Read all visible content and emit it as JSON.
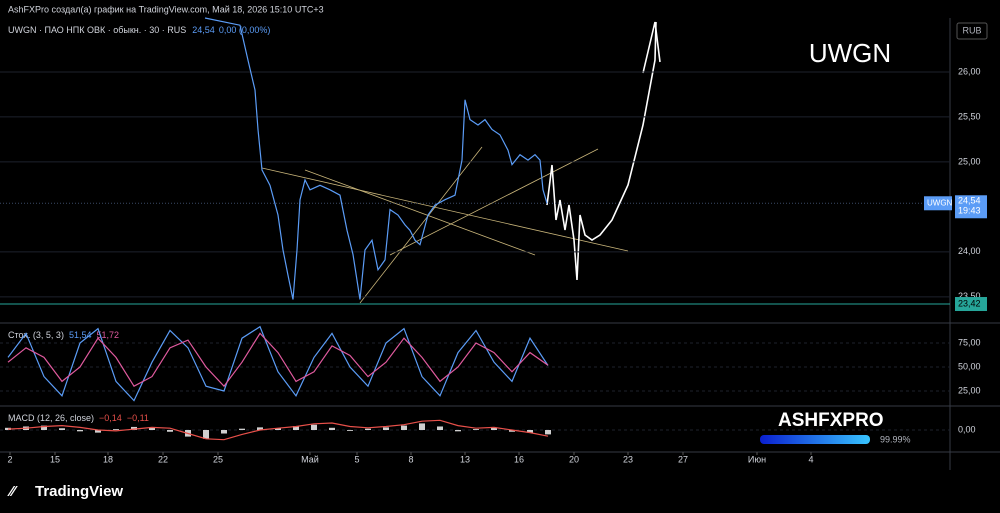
{
  "header": "AshFXPro создал(а) график на TradingView.com, Май 18, 2026 15:10 UTC+3",
  "symbol_big": "UWGN",
  "currency": "RUB",
  "footer": "TradingView",
  "watermark": {
    "title": "ASHFXPRO",
    "percent": "99.99%"
  },
  "chart_data": [
    {
      "type": "line",
      "legend": "UWGN · ПАО НПК ОВК · обыкн. · 30 · RUS",
      "last": {
        "value": 24.54,
        "label": "24,54"
      },
      "change": "0,00 (0,00%)",
      "countdown": "19:43",
      "level": {
        "value": 23.42,
        "label": "23,42",
        "color": "#26a69a"
      },
      "ylim": [
        23.22,
        26.6
      ],
      "yticks": [
        {
          "value": 26,
          "label": "26,00"
        },
        {
          "value": 25.5,
          "label": "25,50"
        },
        {
          "value": 25,
          "label": "25,00"
        },
        {
          "value": 24,
          "label": "24,00"
        },
        {
          "value": 23.5,
          "label": "23,50"
        }
      ],
      "xlim": [
        0,
        950
      ],
      "xticks": [
        {
          "value": 10,
          "label": "2"
        },
        {
          "value": 55,
          "label": "15"
        },
        {
          "value": 108,
          "label": "18"
        },
        {
          "value": 163,
          "label": "22"
        },
        {
          "value": 218,
          "label": "25"
        },
        {
          "value": 310,
          "label": "Май"
        },
        {
          "value": 357,
          "label": "5"
        },
        {
          "value": 411,
          "label": "8"
        },
        {
          "value": 465,
          "label": "13"
        },
        {
          "value": 519,
          "label": "16"
        },
        {
          "value": 574,
          "label": "20"
        },
        {
          "value": 628,
          "label": "23"
        },
        {
          "value": 683,
          "label": "27"
        },
        {
          "value": 757,
          "label": "Июн"
        },
        {
          "value": 811,
          "label": "4"
        }
      ],
      "x": [
        205,
        240,
        248,
        255,
        258,
        262,
        270,
        278,
        283,
        288,
        293,
        297,
        300,
        305,
        310,
        320,
        330,
        340,
        347,
        353,
        360,
        365,
        372,
        378,
        385,
        390,
        398,
        405,
        410,
        415,
        420,
        428,
        435,
        445,
        455,
        462,
        465,
        470,
        478,
        485,
        492,
        500,
        508,
        512,
        520,
        528,
        535,
        540,
        543,
        547
      ],
      "series": [
        {
          "color": "#5b9cf6",
          "values": [
            26.6,
            26.52,
            26.13,
            25.8,
            25.36,
            24.91,
            24.74,
            24.41,
            24.02,
            23.74,
            23.47,
            24.02,
            24.58,
            24.8,
            24.69,
            24.74,
            24.69,
            24.63,
            24.24,
            23.97,
            23.47,
            24.02,
            24.13,
            23.8,
            23.91,
            24.47,
            24.41,
            24.3,
            24.24,
            24.13,
            24.08,
            24.41,
            24.52,
            24.58,
            24.63,
            25.02,
            25.69,
            25.47,
            25.41,
            25.47,
            25.36,
            25.3,
            25.13,
            24.97,
            25.08,
            25.02,
            25.08,
            25.02,
            24.69,
            24.54
          ]
        }
      ]
    },
    {
      "type": "line",
      "legend": "Стох. (3, 5, 3)",
      "legend_values": [
        "51,54",
        "51,72"
      ],
      "ylim": [
        10.4,
        93.75
      ],
      "yticks": [
        {
          "value": 75,
          "label": "75,00"
        },
        {
          "value": 50,
          "label": "50,00"
        },
        {
          "value": 25,
          "label": "25,00"
        }
      ],
      "xlim": [
        0,
        950
      ],
      "x": [
        8,
        26,
        44,
        62,
        80,
        98,
        116,
        134,
        152,
        170,
        188,
        206,
        224,
        242,
        260,
        278,
        296,
        314,
        332,
        350,
        368,
        386,
        404,
        422,
        440,
        458,
        476,
        494,
        512,
        530,
        548
      ],
      "series": [
        {
          "color": "#5b9cf6",
          "values": [
            60,
            85,
            40,
            20,
            75,
            90,
            35,
            15,
            55,
            88,
            70,
            30,
            25,
            80,
            92,
            45,
            20,
            60,
            85,
            50,
            30,
            75,
            90,
            40,
            20,
            65,
            88,
            55,
            35,
            80,
            51.54
          ]
        },
        {
          "color": "#e05a9e",
          "values": [
            55,
            70,
            60,
            35,
            50,
            80,
            60,
            30,
            40,
            70,
            78,
            50,
            30,
            55,
            85,
            65,
            35,
            45,
            72,
            62,
            40,
            55,
            80,
            60,
            35,
            50,
            75,
            65,
            45,
            65,
            51.72
          ]
        }
      ]
    },
    {
      "type": "macd",
      "legend": "MACD (12, 26, close)",
      "legend_values": [
        "−0,14",
        "−0,11"
      ],
      "ylim": [
        -0.5,
        0.5
      ],
      "yticks": [
        {
          "value": 0,
          "label": "0,00"
        }
      ],
      "xlim": [
        0,
        950
      ],
      "x": [
        8,
        26,
        44,
        62,
        80,
        98,
        116,
        134,
        152,
        170,
        188,
        206,
        224,
        242,
        260,
        278,
        296,
        314,
        332,
        350,
        368,
        386,
        404,
        422,
        440,
        458,
        476,
        494,
        512,
        530,
        548
      ],
      "histogram": {
        "color": "#cfcfcf",
        "values": [
          0.05,
          0.08,
          0.1,
          0.04,
          -0.03,
          -0.06,
          0.02,
          0.07,
          0.05,
          -0.04,
          -0.15,
          -0.2,
          -0.08,
          0.03,
          0.06,
          0.04,
          0.09,
          0.12,
          0.05,
          -0.02,
          0.03,
          0.06,
          0.1,
          0.15,
          0.08,
          -0.03,
          0.02,
          0.05,
          -0.04,
          -0.06,
          -0.1
        ]
      },
      "series": [
        {
          "color": "#e8504a",
          "values": [
            0.02,
            0.04,
            0.08,
            0.1,
            0.06,
            0.0,
            -0.02,
            0.02,
            0.06,
            0.04,
            -0.08,
            -0.2,
            -0.22,
            -0.1,
            0.0,
            0.04,
            0.08,
            0.14,
            0.16,
            0.08,
            0.05,
            0.08,
            0.12,
            0.2,
            0.22,
            0.1,
            0.04,
            0.06,
            0.0,
            -0.06,
            -0.14
          ]
        }
      ]
    }
  ]
}
